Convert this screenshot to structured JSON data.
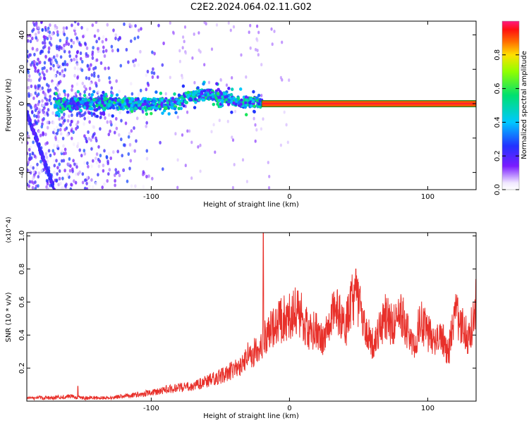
{
  "figure": {
    "title": "C2E2.2024.064.02.11.G02"
  },
  "chart_data": [
    {
      "type": "heatmap",
      "title": "C2E2.2024.064.02.11.G02",
      "xlabel": "Height of straight line (km)",
      "ylabel": "Frequency (Hz)",
      "xlim": [
        -190,
        135
      ],
      "ylim": [
        -50,
        48
      ],
      "x_ticks": [
        -100,
        0,
        100
      ],
      "x_tick_labels": [
        "-100",
        "0",
        "100"
      ],
      "y_ticks": [
        -40,
        -20,
        0,
        20,
        40
      ],
      "y_tick_labels": [
        "-40",
        "-20",
        "0",
        "20",
        "40"
      ],
      "grid": false,
      "colorbar": {
        "label": "Normalized spectral amplitude",
        "range": [
          0,
          1
        ],
        "ticks": [
          0.0,
          0.2,
          0.4,
          0.6,
          0.8
        ],
        "tick_labels": [
          "0.0",
          "0.2",
          "0.4",
          "0.6",
          "0.8"
        ],
        "colormap": "rainbow (white-purple-blue-cyan-green-yellow-red-magenta)"
      },
      "features": {
        "carrier_band": {
          "x_start": -20,
          "x_end": 135,
          "frequency_center": 0,
          "frequency_halfwidth": 1.8,
          "amplitude": 0.9,
          "color_outline": "#1a8a1a"
        },
        "noisy_band": {
          "x_range": [
            -170,
            -20
          ],
          "frequency_center": 0,
          "amplitude_range": [
            0.15,
            0.6
          ]
        },
        "scatter_region": {
          "x_range": [
            -190,
            -90
          ],
          "frequency_range": [
            -50,
            48
          ],
          "amplitude_range": [
            0.02,
            0.3
          ]
        }
      }
    },
    {
      "type": "line",
      "title": "",
      "xlabel": "Height of straight line (km)",
      "ylabel": "SNR (10 * v/v)",
      "y_multiplier_label": "(x10^4)",
      "xlim": [
        -190,
        135
      ],
      "ylim": [
        0,
        1.02
      ],
      "x_ticks": [
        -100,
        0,
        100
      ],
      "x_tick_labels": [
        "-100",
        "0",
        "100"
      ],
      "y_ticks": [
        0.2,
        0.4,
        0.6,
        0.8,
        1.0
      ],
      "y_tick_labels": [
        "0.2",
        "0.4",
        "0.6",
        "0.8",
        "1.0"
      ],
      "grid": false,
      "series": [
        {
          "color": "#e8302a",
          "x": [
            -190,
            -170,
            -160,
            -150,
            -140,
            -130,
            -120,
            -110,
            -100,
            -90,
            -80,
            -70,
            -60,
            -50,
            -45,
            -40,
            -35,
            -30,
            -25,
            -20,
            -15,
            -10,
            -5,
            0,
            5,
            10,
            15,
            20,
            25,
            30,
            35,
            40,
            45,
            50,
            55,
            60,
            65,
            70,
            75,
            80,
            85,
            90,
            95,
            100,
            105,
            110,
            115,
            120,
            125,
            130,
            135
          ],
          "values": [
            0.02,
            0.02,
            0.03,
            0.02,
            0.02,
            0.02,
            0.03,
            0.04,
            0.05,
            0.07,
            0.08,
            0.09,
            0.12,
            0.15,
            0.17,
            0.2,
            0.22,
            0.28,
            0.3,
            0.36,
            0.42,
            0.45,
            0.5,
            0.52,
            0.55,
            0.5,
            0.42,
            0.45,
            0.35,
            0.5,
            0.55,
            0.42,
            0.6,
            0.62,
            0.45,
            0.35,
            0.45,
            0.52,
            0.45,
            0.55,
            0.42,
            0.35,
            0.48,
            0.42,
            0.35,
            0.38,
            0.3,
            0.52,
            0.45,
            0.38,
            0.6
          ],
          "spikes": [
            {
              "x": -153,
              "value": 0.09
            },
            {
              "x": -19,
              "value": 1.02
            },
            {
              "x": 48,
              "value": 0.8
            }
          ]
        }
      ]
    }
  ]
}
